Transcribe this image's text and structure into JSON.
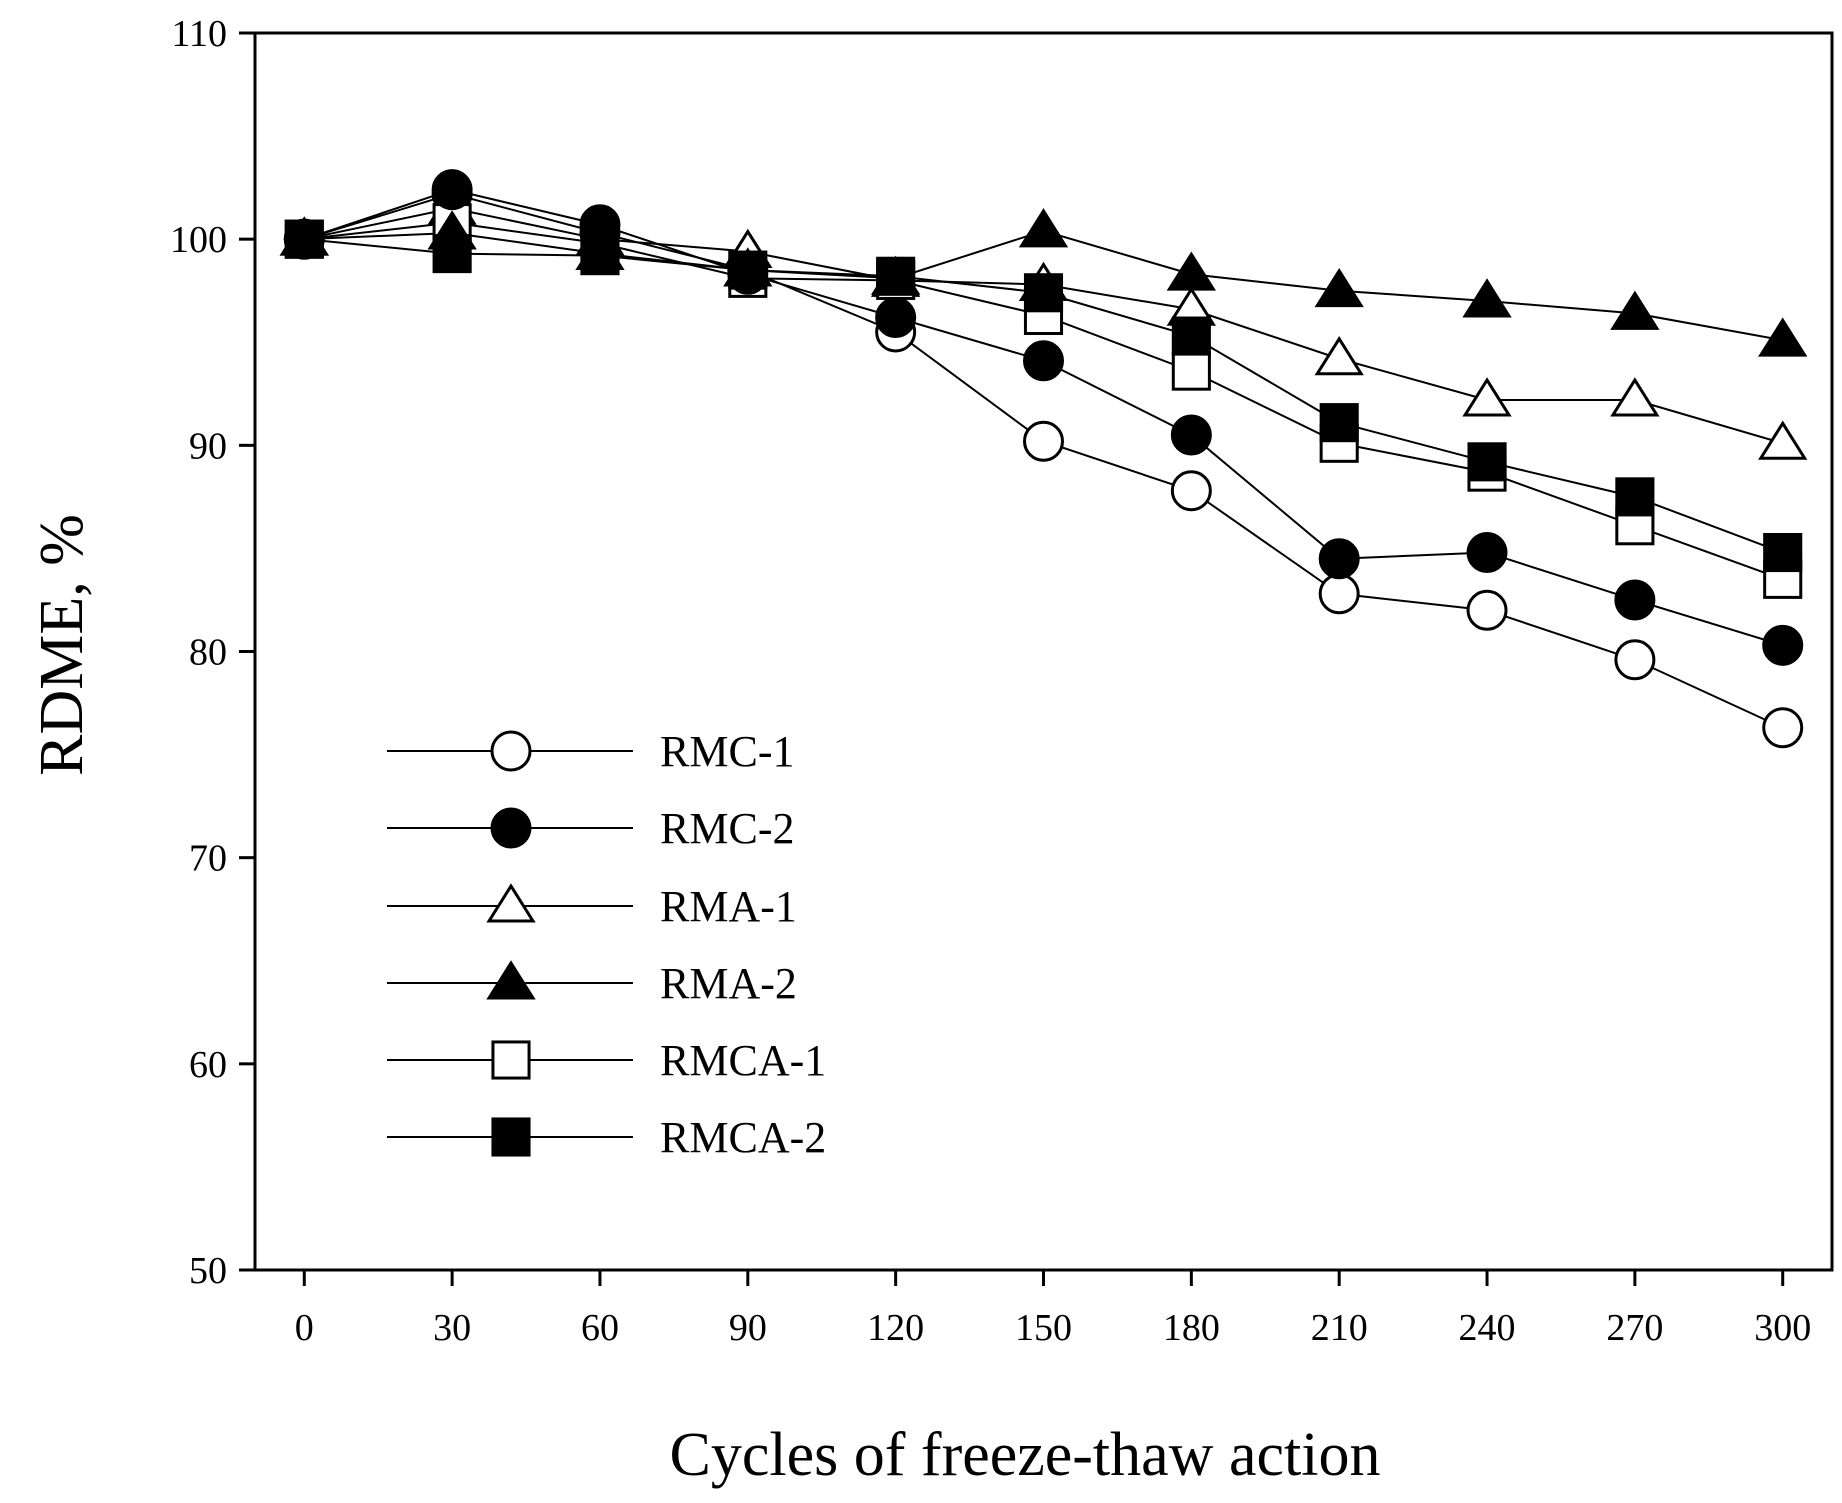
{
  "chart_data": {
    "type": "line",
    "title": "",
    "xlabel": "Cycles of freeze-thaw action",
    "ylabel": "RDME, %",
    "x": [
      0,
      30,
      60,
      90,
      120,
      150,
      180,
      210,
      240,
      270,
      300
    ],
    "xticks": [
      "0",
      "30",
      "60",
      "90",
      "120",
      "150",
      "180",
      "210",
      "240",
      "270",
      "300"
    ],
    "xlim": [
      -10,
      310
    ],
    "yticks": [
      "50",
      "60",
      "70",
      "80",
      "90",
      "100",
      "110"
    ],
    "ylim": [
      50,
      110
    ],
    "grid": false,
    "legend_position": "center-left",
    "series": [
      {
        "name": "RMC-1",
        "marker": "circle",
        "filled": false,
        "values": [
          100,
          102.2,
          100.3,
          98.5,
          95.5,
          90.2,
          87.8,
          82.8,
          82.0,
          79.6,
          76.3
        ]
      },
      {
        "name": "RMC-2",
        "marker": "circle",
        "filled": true,
        "values": [
          100,
          102.4,
          100.7,
          98.3,
          96.2,
          94.1,
          90.5,
          84.5,
          84.8,
          82.5,
          80.3
        ]
      },
      {
        "name": "RMA-1",
        "marker": "triangle",
        "filled": false,
        "values": [
          100,
          101.5,
          100.0,
          99.4,
          98.0,
          97.8,
          96.6,
          94.2,
          92.2,
          92.2,
          90.1
        ]
      },
      {
        "name": "RMA-2",
        "marker": "triangle",
        "filled": true,
        "values": [
          100,
          100.3,
          99.3,
          98.5,
          98.1,
          100.4,
          98.3,
          97.5,
          97.0,
          96.4,
          95.1
        ]
      },
      {
        "name": "RMCA-1",
        "marker": "square",
        "filled": false,
        "values": [
          100,
          100.8,
          99.8,
          98.1,
          98.0,
          96.3,
          93.6,
          90.1,
          88.7,
          86.1,
          83.5
        ]
      },
      {
        "name": "RMCA-2",
        "marker": "square",
        "filled": true,
        "values": [
          100,
          99.3,
          99.2,
          98.5,
          98.2,
          97.4,
          95.3,
          91.1,
          89.2,
          87.5,
          84.8
        ]
      }
    ]
  }
}
